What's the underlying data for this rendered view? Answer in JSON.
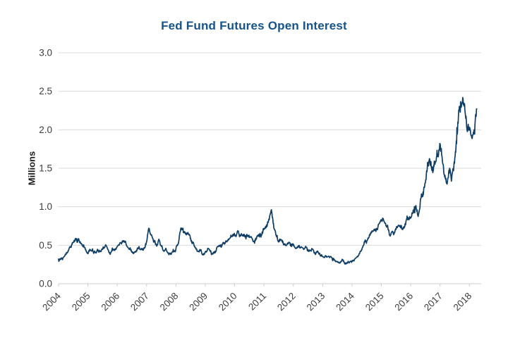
{
  "chart_data": {
    "type": "line",
    "title": "Fed Fund Futures Open Interest",
    "xlabel": "",
    "ylabel": "Millions",
    "legend": "none",
    "grid": "horizontal",
    "ylim": [
      0.0,
      3.0
    ],
    "y_tick_values": [
      0.0,
      0.5,
      1.0,
      1.5,
      2.0,
      2.5,
      3.0
    ],
    "y_tick_labels": [
      "0.0",
      "0.5",
      "1.0",
      "1.5",
      "2.0",
      "2.5",
      "3.0"
    ],
    "x_tick_years": [
      2004,
      2005,
      2006,
      2007,
      2008,
      2009,
      2010,
      2011,
      2012,
      2013,
      2014,
      2015,
      2016,
      2017,
      2018
    ],
    "x_tick_labels": [
      "2004",
      "2005",
      "2006",
      "2007",
      "2008",
      "2009",
      "2010",
      "2011",
      "2012",
      "2013",
      "2014",
      "2015",
      "2016",
      "2017",
      "2018"
    ],
    "xlim_years": [
      2004,
      2018.4
    ],
    "x_label_rotation_deg": 45,
    "series": [
      {
        "name": "Fed Fund Futures Open Interest",
        "unit": "millions of contracts",
        "start_year": 2004,
        "interval_months": 1,
        "values": [
          0.32,
          0.33,
          0.36,
          0.4,
          0.44,
          0.49,
          0.53,
          0.56,
          0.57,
          0.51,
          0.47,
          0.44,
          0.41,
          0.46,
          0.43,
          0.39,
          0.44,
          0.42,
          0.47,
          0.5,
          0.44,
          0.41,
          0.45,
          0.42,
          0.46,
          0.5,
          0.54,
          0.56,
          0.51,
          0.47,
          0.43,
          0.4,
          0.45,
          0.48,
          0.44,
          0.47,
          0.54,
          0.71,
          0.62,
          0.55,
          0.5,
          0.55,
          0.48,
          0.44,
          0.46,
          0.4,
          0.37,
          0.42,
          0.46,
          0.55,
          0.76,
          0.7,
          0.66,
          0.69,
          0.6,
          0.52,
          0.45,
          0.4,
          0.43,
          0.39,
          0.41,
          0.44,
          0.42,
          0.4,
          0.43,
          0.46,
          0.48,
          0.5,
          0.53,
          0.58,
          0.62,
          0.65,
          0.63,
          0.66,
          0.64,
          0.67,
          0.62,
          0.59,
          0.62,
          0.57,
          0.55,
          0.58,
          0.62,
          0.66,
          0.7,
          0.75,
          0.8,
          0.92,
          0.72,
          0.62,
          0.57,
          0.6,
          0.54,
          0.52,
          0.55,
          0.5,
          0.52,
          0.48,
          0.5,
          0.46,
          0.44,
          0.47,
          0.43,
          0.41,
          0.44,
          0.4,
          0.42,
          0.38,
          0.37,
          0.35,
          0.33,
          0.35,
          0.31,
          0.32,
          0.3,
          0.28,
          0.3,
          0.27,
          0.28,
          0.27,
          0.28,
          0.3,
          0.33,
          0.38,
          0.44,
          0.52,
          0.58,
          0.64,
          0.7,
          0.73,
          0.71,
          0.74,
          0.8,
          0.86,
          0.78,
          0.68,
          0.63,
          0.67,
          0.74,
          0.8,
          0.76,
          0.72,
          0.78,
          0.84,
          0.88,
          0.95,
          1.05,
          0.92,
          1.08,
          1.2,
          1.28,
          1.55,
          1.6,
          1.52,
          1.65,
          1.72,
          1.78,
          1.62,
          1.42,
          1.35,
          1.44,
          1.38,
          1.55,
          1.9,
          2.3,
          2.48,
          2.42,
          2.1,
          1.95,
          1.8,
          1.92,
          2.28
        ]
      }
    ],
    "colors": {
      "line": "#0e3e66",
      "title": "#14538c",
      "axis_text": "#3d3d3d",
      "gridline": "#d9d9d9",
      "axis_line": "#cccccc",
      "background": "#ffffff"
    },
    "style": {
      "line_width": 1.7,
      "noise_amp_frac": 0.05,
      "noise_amp_min": 0.018,
      "noise_seed": 13,
      "sub_steps_per_month": 8
    }
  }
}
